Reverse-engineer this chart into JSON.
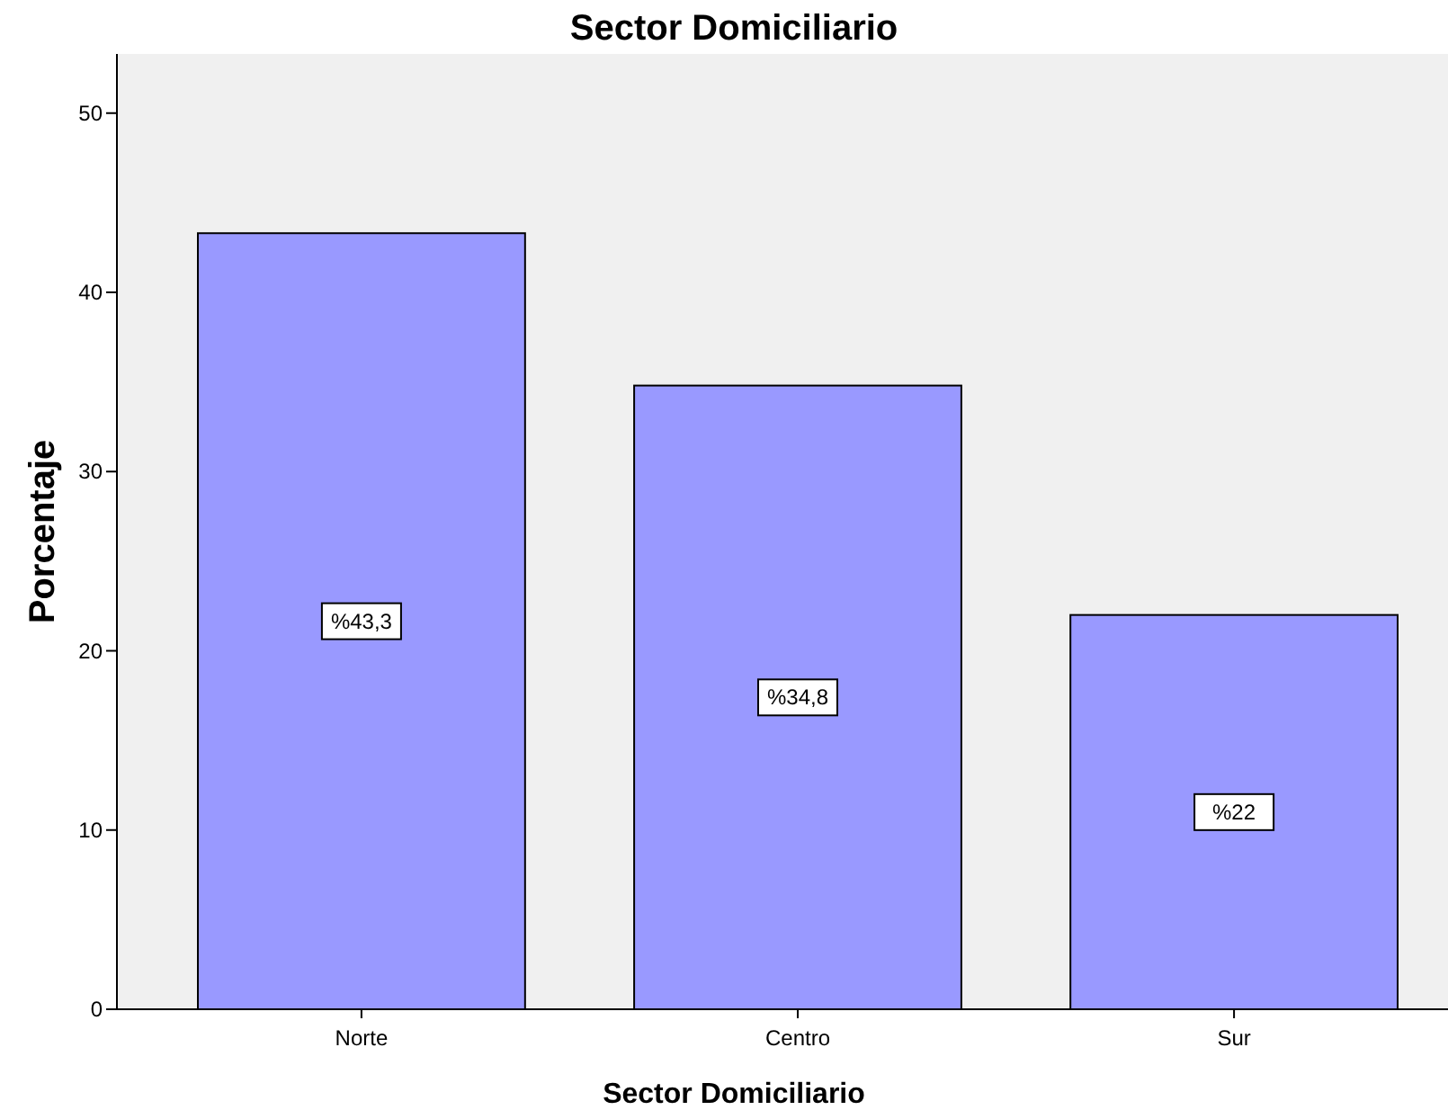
{
  "chart_data": {
    "type": "bar",
    "title": "Sector Domiciliario",
    "xlabel": "Sector Domiciliario",
    "ylabel": "Porcentaje",
    "categories": [
      "Norte",
      "Centro",
      "Sur"
    ],
    "values": [
      43.3,
      34.8,
      22
    ],
    "value_labels": [
      "%43,3",
      "%34,8",
      "%22"
    ],
    "color": "#9999ff",
    "ylim": [
      0,
      53.3
    ],
    "yticks": [
      0,
      10,
      20,
      30,
      40,
      50
    ],
    "grid": false
  }
}
